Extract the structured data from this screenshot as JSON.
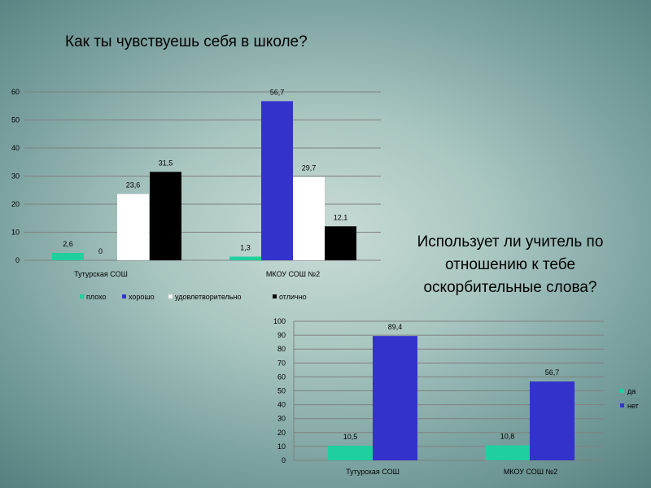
{
  "chart_data": [
    {
      "type": "bar",
      "title": "Как ты чувствуешь себя в школе?",
      "categories": [
        "Тутурская СОШ",
        "МКОУ СОШ №2"
      ],
      "series": [
        {
          "name": "плохо",
          "values": [
            2.6,
            1.3
          ],
          "labels": [
            "2,6",
            "1,3"
          ],
          "color": "#1fcf9e"
        },
        {
          "name": "хорошо",
          "values": [
            0,
            56.7
          ],
          "labels": [
            "0",
            "56,7"
          ],
          "color": "#3333cc"
        },
        {
          "name": "удовлетворительно",
          "values": [
            23.6,
            29.7
          ],
          "labels": [
            "23,6",
            "29,7"
          ],
          "color": "#ffffff"
        },
        {
          "name": "отлично",
          "values": [
            31.5,
            12.1
          ],
          "labels": [
            "31,5",
            "12,1"
          ],
          "color": "#000000"
        }
      ],
      "ylim": [
        0,
        60
      ],
      "yticks": [
        "0",
        "10",
        "20",
        "30",
        "40",
        "50",
        "60"
      ],
      "legend": "bottom",
      "grid": true
    },
    {
      "type": "bar",
      "title": "Использует ли учитель  по отношению к тебе оскорбительные слова?",
      "categories": [
        "Тутурская СОШ",
        "МКОУ СОШ №2"
      ],
      "series": [
        {
          "name": "да",
          "values": [
            10.5,
            10.8
          ],
          "labels": [
            "10,5",
            "10,8"
          ],
          "color": "#1fcf9e"
        },
        {
          "name": "нет",
          "values": [
            89.4,
            56.7
          ],
          "labels": [
            "89,4",
            "56,7"
          ],
          "color": "#3333cc"
        }
      ],
      "ylim": [
        0,
        100
      ],
      "yticks": [
        "0",
        "10",
        "20",
        "30",
        "40",
        "50",
        "60",
        "70",
        "80",
        "90",
        "100"
      ],
      "legend": "right",
      "grid": true
    }
  ]
}
